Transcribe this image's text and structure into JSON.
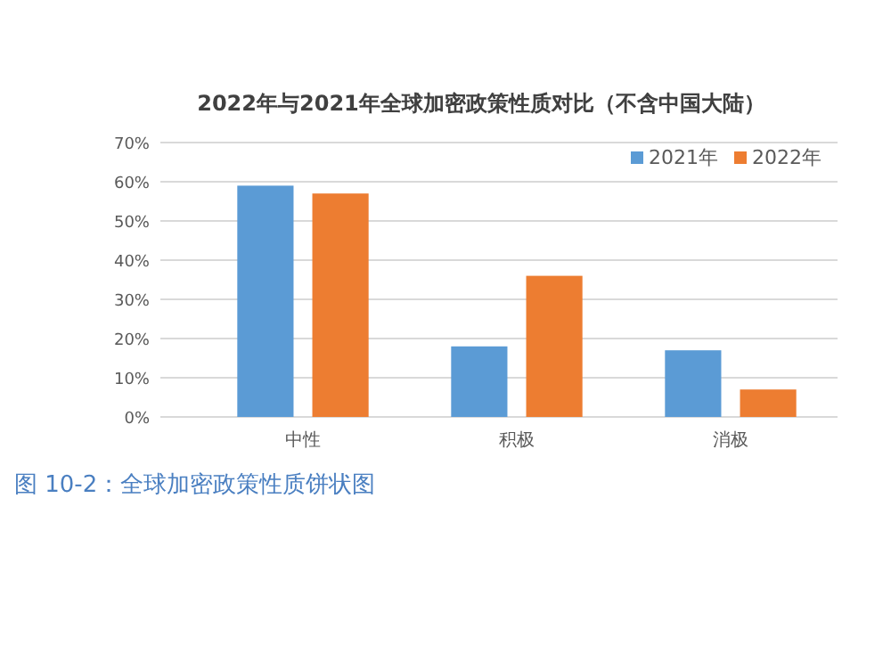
{
  "chart_data": {
    "type": "bar",
    "title": "2022年与2021年全球加密政策性质对比（不含中国大陆）",
    "categories": [
      "中性",
      "积极",
      "消极"
    ],
    "series": [
      {
        "name": "2021年",
        "color": "#5b9bd5",
        "values": [
          59,
          18,
          17
        ]
      },
      {
        "name": "2022年",
        "color": "#ed7d31",
        "values": [
          57,
          36,
          7
        ]
      }
    ],
    "ylim": [
      0,
      70
    ],
    "yticks": [
      {
        "value": 0,
        "label": "0%"
      },
      {
        "value": 10,
        "label": "10%"
      },
      {
        "value": 20,
        "label": "20%"
      },
      {
        "value": 30,
        "label": "30%"
      },
      {
        "value": 40,
        "label": "40%"
      },
      {
        "value": 50,
        "label": "50%"
      },
      {
        "value": 60,
        "label": "60%"
      },
      {
        "value": 70,
        "label": "70%"
      }
    ],
    "grid": "y",
    "legend": "top right",
    "annotations": [
      "图 10-2：全球加密政策性质饼状图"
    ]
  }
}
